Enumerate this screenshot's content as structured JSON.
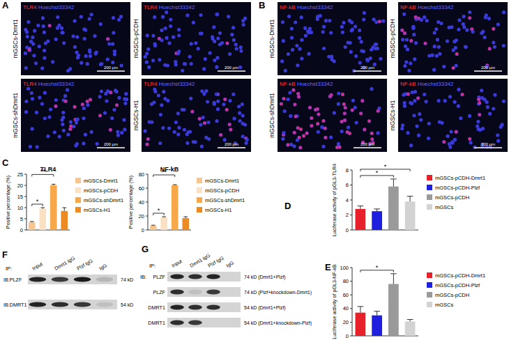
{
  "panel_labels": [
    "A",
    "B",
    "C",
    "D",
    "E",
    "F",
    "G"
  ],
  "images": [
    {
      "stain": "TLR4",
      "counterstain": "Hoechst33342",
      "scale_bar": "200 μm",
      "samples": [
        "mGSCs-Dmrt1",
        "mGSCs-pCDH",
        "mGSCs-shDmrt1",
        "mGSCs-H1"
      ]
    },
    {
      "stain": "NF-kB",
      "counterstain": "Hoechst33342",
      "scale_bar": "200 μm",
      "samples": [
        "mGSCs-Dmrt1",
        "mGSCs-pCDH",
        "mGSCs-shDmrt1",
        "mGSCs-H1"
      ]
    }
  ],
  "chart_data": [
    {
      "type": "bar",
      "title": "TLR4",
      "y_label": "Positive percentage (%)",
      "categories": [
        "mGSCs-Dmrt1",
        "mGSCs-pCDH",
        "mGSCs-shDmrt1",
        "mGSCs-H1"
      ],
      "values": [
        3.5,
        9.5,
        20,
        8.5
      ],
      "errors": [
        0.3,
        0.5,
        0.5,
        1.5
      ],
      "colors": [
        "#f6c590",
        "#fbe1c3",
        "#f7a84a",
        "#ec8a24"
      ],
      "ylim": [
        0,
        25
      ],
      "yticks": [
        0,
        5,
        10,
        15,
        20,
        25
      ],
      "legend": "right",
      "tick_labels": "y",
      "annotations": [
        {
          "text": "*",
          "between": [
            0,
            1
          ]
        },
        {
          "text": "**",
          "between": [
            0,
            2
          ]
        }
      ]
    },
    {
      "type": "bar",
      "title": "NF-kB",
      "y_label": "Positive percentage (%)",
      "categories": [
        "mGSCs-Dmrt1",
        "mGSCs-pCDH",
        "mGSCs-shDmrt1",
        "mGSCs-H1"
      ],
      "values": [
        6,
        18,
        64,
        17
      ],
      "errors": [
        0.8,
        1,
        1,
        2
      ],
      "colors": [
        "#f6c590",
        "#fbe1c3",
        "#f7a84a",
        "#ec8a24"
      ],
      "ylim": [
        0,
        80
      ],
      "yticks": [
        0,
        20,
        40,
        60,
        80
      ],
      "legend": "right",
      "tick_labels": "y",
      "annotations": [
        {
          "text": "*",
          "between": [
            0,
            1
          ]
        },
        {
          "text": "**",
          "between": [
            0,
            2
          ]
        }
      ]
    },
    {
      "type": "bar",
      "y_label": "Luciferase activity of pGL3-TLR4",
      "categories": [
        "mGSCs-pCDH-Dmrt1",
        "mGSCs-pCDH-Plzf",
        "mGSCs-pCDH",
        "mGSCs"
      ],
      "values": [
        2.8,
        2.5,
        5.8,
        3.8
      ],
      "errors": [
        0.4,
        0.3,
        1.0,
        0.7
      ],
      "colors": [
        "#e8202a",
        "#1f1fe0",
        "#9a9a9a",
        "#d3d3d3"
      ],
      "ylim": [
        0,
        8
      ],
      "yticks": [
        0,
        2,
        4,
        6,
        8
      ],
      "legend": "right",
      "tick_labels": "y",
      "annotations": [
        {
          "text": "*",
          "between": [
            0,
            2
          ]
        },
        {
          "text": "*",
          "between": [
            0,
            3
          ]
        }
      ]
    },
    {
      "type": "bar",
      "y_label": "Luciferase activity of pGL3-NF-kB",
      "categories": [
        "mGSCs-pCDH-Dmrt1",
        "mGSCs-pCDH-Plzf",
        "mGSCs-pCDH",
        "mGSCs"
      ],
      "values": [
        34,
        30,
        76,
        21
      ],
      "errors": [
        9,
        6,
        15,
        3
      ],
      "colors": [
        "#e8202a",
        "#1f1fe0",
        "#9a9a9a",
        "#d3d3d3"
      ],
      "ylim": [
        0,
        100
      ],
      "yticks": [
        0,
        20,
        40,
        60,
        80,
        100
      ],
      "legend": "right",
      "tick_labels": "y",
      "annotations": [
        {
          "text": "*",
          "between": [
            0,
            2
          ]
        }
      ]
    }
  ],
  "blots": [
    {
      "ip_label": "IP:",
      "lanes": [
        "Input",
        "Dmrt1 IgG",
        "Plzf IgG",
        "IgG"
      ],
      "rows": [
        {
          "label": "IB:PLZF",
          "size": "74 kD",
          "band_intensity": [
            0.9,
            0.8,
            0.95,
            0.15
          ]
        },
        {
          "label": "IB:DMRT1",
          "size": "54 kD",
          "band_intensity": [
            0.9,
            0.85,
            0.8,
            0.1
          ]
        }
      ]
    },
    {
      "ip_label": "IP:",
      "ib_label": "IB:",
      "lanes": [
        "Input",
        "Dmrt1 IgG",
        "Plzf IgG",
        "IgG"
      ],
      "rows": [
        {
          "label": "PLZF",
          "size": "74 kD (Dmrt1+Plzf)",
          "band_intensity": [
            0.9,
            0.85,
            0.9,
            0
          ]
        },
        {
          "label": "PLZF",
          "size": "74 kD (Plzf+knockdown-Dmrt1)",
          "band_intensity": [
            0.85,
            0.1,
            0.8,
            0
          ]
        },
        {
          "label": "DMRT1",
          "size": "54 kD (Dmrt1+Plzf)",
          "band_intensity": [
            0.9,
            0.85,
            0.85,
            0
          ]
        },
        {
          "label": "DMRT1",
          "size": "54 kD (Dmrt1+knockdown-Plzf)",
          "band_intensity": [
            0.85,
            0.8,
            0,
            0
          ]
        }
      ]
    }
  ]
}
